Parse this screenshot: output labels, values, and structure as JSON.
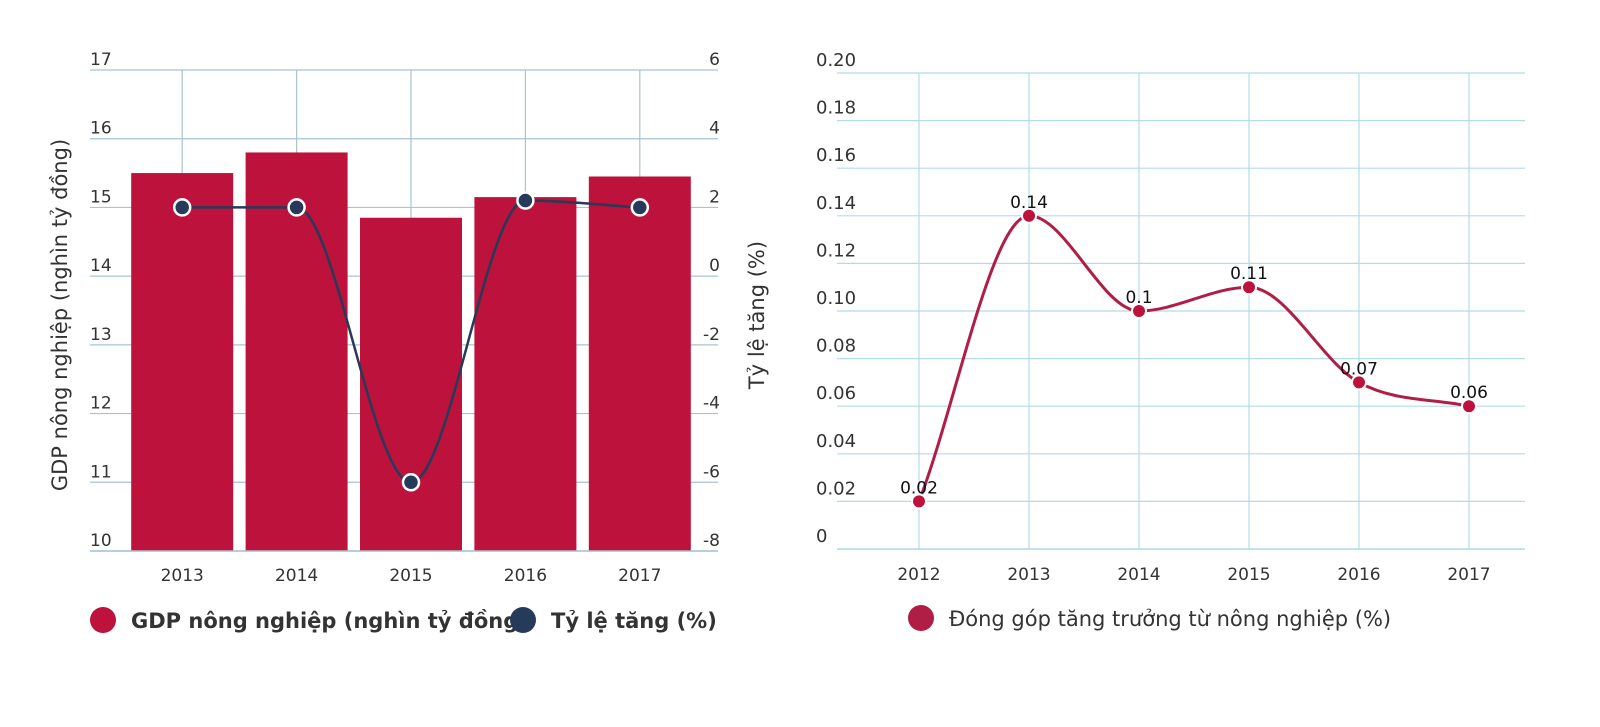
{
  "colors": {
    "bar": "#bc123b",
    "rate_line": "#263a5a",
    "right_line": "#b01e45",
    "left_grid": "#a8c3d1",
    "right_grid": "#b3dbe8",
    "axis_text": "#333333",
    "legend_text": "#333333"
  },
  "chart_data": [
    {
      "type": "bar",
      "categories": [
        "2013",
        "2014",
        "2015",
        "2016",
        "2017"
      ],
      "series": [
        {
          "name": "GDP nông nghiệp (nghìn tỷ đồng)",
          "type": "bar",
          "axis": "left",
          "values": [
            15.5,
            15.8,
            14.85,
            15.15,
            15.45
          ]
        },
        {
          "name": "Tỷ lệ tăng (%)",
          "type": "line",
          "axis": "right",
          "smooth": true,
          "values": [
            2.0,
            2.0,
            -6.0,
            2.2,
            2.0
          ]
        }
      ],
      "ylabel": "GDP nông nghiệp (nghìn tỷ đồng)",
      "y2label": "Tỷ lệ tăng (%)",
      "ylim": [
        10,
        17
      ],
      "y2lim": [
        -8,
        6
      ],
      "yticks": [
        "10",
        "11",
        "12",
        "13",
        "14",
        "15",
        "16",
        "17"
      ],
      "y2ticks": [
        "-8",
        "-6",
        "-4",
        "-2",
        "0",
        "2",
        "4",
        "6"
      ],
      "grid": true,
      "legend": "bottom"
    },
    {
      "type": "line",
      "categories": [
        "2012",
        "2013",
        "2014",
        "2015",
        "2016",
        "2017"
      ],
      "series": [
        {
          "name": "Đóng góp tăng trưởng từ nông nghiệp (%)",
          "values": [
            0.02,
            0.14,
            0.1,
            0.11,
            0.07,
            0.06
          ],
          "labels": [
            "0.02",
            "0.14",
            "0.1",
            "0.11",
            "0.07",
            "0.06"
          ],
          "smooth": true
        }
      ],
      "ylim": [
        0,
        0.2
      ],
      "yticks": [
        "0",
        "0.02",
        "0.04",
        "0.06",
        "0.08",
        "0.10",
        "0.12",
        "0.14",
        "0.16",
        "0.18",
        "0.20"
      ],
      "grid": true,
      "legend": "bottom"
    }
  ]
}
